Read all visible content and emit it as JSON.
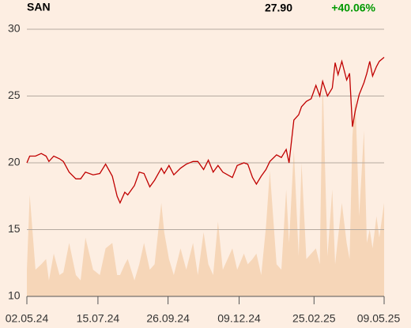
{
  "chart_data": {
    "type": "line",
    "title": "SAN",
    "last_price": "27.90",
    "change": "+40.06%",
    "change_color": "#009900",
    "x": [
      "02.05.24",
      "05.05.24",
      "11.05.24",
      "17.05.24",
      "22.05.24",
      "25.05.24",
      "30.05.24",
      "05.06.24",
      "09.06.24",
      "15.06.24",
      "22.06.24",
      "27.06.24",
      "02.07.24",
      "10.07.24",
      "17.07.24",
      "23.07.24",
      "30.07.24",
      "04.08.24",
      "07.08.24",
      "12.08.24",
      "15.08.24",
      "22.08.24",
      "27.08.24",
      "01.09.24",
      "07.09.24",
      "12.09.24",
      "19.09.24",
      "22.09.24",
      "27.09.24",
      "02.10.24",
      "09.10.24",
      "15.10.24",
      "22.10.24",
      "27.10.24",
      "02.11.24",
      "07.11.24",
      "12.11.24",
      "17.11.24",
      "22.11.24",
      "02.12.24",
      "07.12.24",
      "14.12.24",
      "18.12.24",
      "23.12.24",
      "27.12.24",
      "01.01.25",
      "06.01.25",
      "10.01.25",
      "17.01.25",
      "22.01.25",
      "27.01.25",
      "30.01.25",
      "04.02.25",
      "09.02.25",
      "12.02.25",
      "17.02.25",
      "22.02.25",
      "27.02.25",
      "03.03.25",
      "06.03.25",
      "11.03.25",
      "16.03.25",
      "19.03.25",
      "22.03.25",
      "26.03.25",
      "31.03.25",
      "03.04.25",
      "06.04.25",
      "09.04.25",
      "13.04.25",
      "18.04.25",
      "21.04.25",
      "24.04.25",
      "27.04.25",
      "01.05.25",
      "04.05.25",
      "09.05.25"
    ],
    "series": [
      {
        "color": "#c00000",
        "values": [
          20.0,
          20.5,
          20.5,
          20.7,
          20.5,
          20.1,
          20.5,
          20.3,
          20.1,
          19.3,
          18.8,
          18.8,
          19.3,
          19.1,
          19.2,
          19.9,
          19.0,
          17.5,
          17.0,
          17.8,
          17.6,
          18.3,
          19.3,
          19.2,
          18.2,
          18.7,
          19.6,
          19.2,
          19.8,
          19.1,
          19.6,
          19.9,
          20.1,
          20.1,
          19.5,
          20.2,
          19.3,
          19.8,
          19.3,
          18.9,
          19.8,
          20.0,
          19.9,
          18.9,
          18.4,
          19.0,
          19.5,
          20.1,
          20.6,
          20.4,
          21.0,
          20.0,
          23.2,
          23.6,
          24.2,
          24.6,
          24.8,
          25.8,
          25.0,
          26.1,
          25.0,
          25.6,
          27.5,
          26.6,
          27.6,
          26.2,
          26.7,
          22.7,
          23.9,
          25.1,
          26.0,
          26.7,
          27.6,
          26.5,
          27.2,
          27.6,
          27.9
        ]
      },
      {
        "color": "#f6d6b8",
        "axis": "y2",
        "values": [
          10,
          38,
          10,
          12,
          14,
          6,
          16,
          8,
          9,
          20,
          8,
          6,
          22,
          10,
          8,
          18,
          20,
          8,
          8,
          12,
          14,
          6,
          12,
          20,
          10,
          12,
          35,
          24,
          14,
          8,
          18,
          10,
          20,
          8,
          24,
          12,
          8,
          28,
          10,
          18,
          10,
          16,
          12,
          14,
          16,
          8,
          26,
          47,
          12,
          10,
          40,
          20,
          55,
          15,
          50,
          14,
          16,
          18,
          12,
          82,
          15,
          40,
          12,
          22,
          35,
          20,
          14,
          60,
          75,
          30,
          62,
          20,
          25,
          18,
          30,
          22,
          35
        ]
      }
    ],
    "xlim": [
      "02.05.24",
      "09.05.25"
    ],
    "xticks": [
      "02.05.24",
      "15.07.24",
      "26.09.24",
      "09.12.24",
      "25.02.25",
      "09.05.25"
    ],
    "ylim": [
      10,
      30
    ],
    "yticks": [
      10,
      15,
      20,
      25,
      30
    ],
    "y2lim": [
      0,
      100
    ],
    "grid": true
  }
}
